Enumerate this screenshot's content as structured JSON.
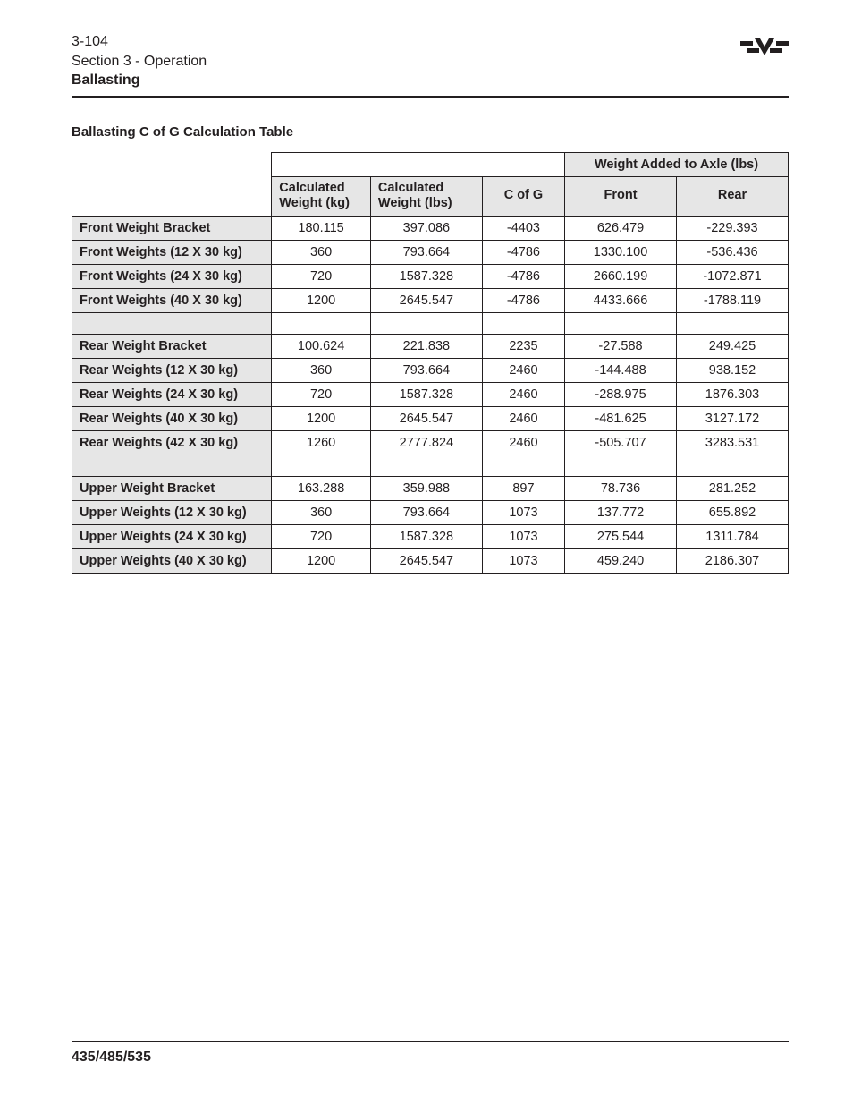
{
  "header": {
    "page_num": "3-104",
    "section": "Section 3 - Operation",
    "topic": "Ballasting"
  },
  "subtitle": "Ballasting C of G Calculation Table",
  "table": {
    "group_header": "Weight Added to Axle (lbs)",
    "columns": {
      "calc_kg": "Calculated Weight (kg)",
      "calc_lbs": "Calculated Weight (lbs)",
      "cofg": "C of G",
      "front": "Front",
      "rear": "Rear"
    },
    "rows": [
      {
        "label": "Front Weight Bracket",
        "kg": "180.115",
        "lbs": "397.086",
        "cofg": "-4403",
        "front": "626.479",
        "rear": "-229.393"
      },
      {
        "label": "Front Weights (12 X 30 kg)",
        "kg": "360",
        "lbs": "793.664",
        "cofg": "-4786",
        "front": "1330.100",
        "rear": "-536.436"
      },
      {
        "label": "Front Weights (24 X 30 kg)",
        "kg": "720",
        "lbs": "1587.328",
        "cofg": "-4786",
        "front": "2660.199",
        "rear": "-1072.871"
      },
      {
        "label": "Front Weights (40 X 30 kg)",
        "kg": "1200",
        "lbs": "2645.547",
        "cofg": "-4786",
        "front": "4433.666",
        "rear": "-1788.119"
      },
      {
        "spacer": true
      },
      {
        "label": "Rear Weight Bracket",
        "kg": "100.624",
        "lbs": "221.838",
        "cofg": "2235",
        "front": "-27.588",
        "rear": "249.425"
      },
      {
        "label": "Rear Weights (12 X 30 kg)",
        "kg": "360",
        "lbs": "793.664",
        "cofg": "2460",
        "front": "-144.488",
        "rear": "938.152"
      },
      {
        "label": "Rear Weights (24 X 30 kg)",
        "kg": "720",
        "lbs": "1587.328",
        "cofg": "2460",
        "front": "-288.975",
        "rear": "1876.303"
      },
      {
        "label": "Rear Weights (40 X 30 kg)",
        "kg": "1200",
        "lbs": "2645.547",
        "cofg": "2460",
        "front": "-481.625",
        "rear": "3127.172"
      },
      {
        "label": "Rear Weights (42 X 30 kg)",
        "kg": "1260",
        "lbs": "2777.824",
        "cofg": "2460",
        "front": "-505.707",
        "rear": "3283.531"
      },
      {
        "spacer": true
      },
      {
        "label": "Upper Weight Bracket",
        "kg": "163.288",
        "lbs": "359.988",
        "cofg": "897",
        "front": "78.736",
        "rear": "281.252"
      },
      {
        "label": "Upper Weights (12 X 30 kg)",
        "kg": "360",
        "lbs": "793.664",
        "cofg": "1073",
        "front": "137.772",
        "rear": "655.892"
      },
      {
        "label": "Upper Weights (24 X 30 kg)",
        "kg": "720",
        "lbs": "1587.328",
        "cofg": "1073",
        "front": "275.544",
        "rear": "1311.784"
      },
      {
        "label": "Upper Weights (40 X 30 kg)",
        "kg": "1200",
        "lbs": "2645.547",
        "cofg": "1073",
        "front": "459.240",
        "rear": "2186.307"
      }
    ]
  },
  "footer": {
    "models": "435/485/535"
  },
  "style": {
    "text_color": "#231f20",
    "header_fill": "#e6e6e6",
    "border_color": "#231f20",
    "font_family": "Arial, Helvetica, sans-serif"
  }
}
